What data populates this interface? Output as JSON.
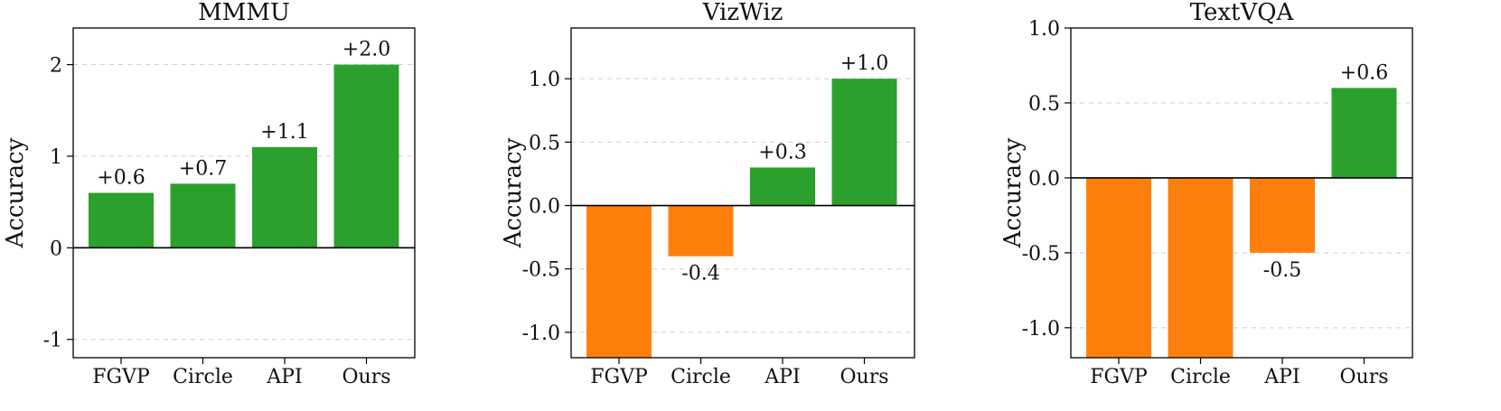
{
  "colors": {
    "positive": "#2ca02c",
    "negative": "#ff7f0e"
  },
  "chart_data": [
    {
      "type": "bar",
      "title": "MMMU",
      "ylabel": "Accuracy",
      "xlabel": "",
      "categories": [
        "FGVP",
        "Circle",
        "API",
        "Ours"
      ],
      "values": [
        0.6,
        0.7,
        1.1,
        2.0
      ],
      "labels": [
        "+0.6",
        "+0.7",
        "+1.1",
        "+2.0"
      ],
      "ylim": [
        -1.2,
        2.4
      ],
      "yticks": [
        -1,
        0,
        1,
        2
      ],
      "ytick_labels": [
        "-1",
        "0",
        "1",
        "2"
      ]
    },
    {
      "type": "bar",
      "title": "VizWiz",
      "ylabel": "Accuracy",
      "xlabel": "",
      "categories": [
        "FGVP",
        "Circle",
        "API",
        "Ours"
      ],
      "values": [
        -1.2,
        -0.4,
        0.3,
        1.0
      ],
      "labels": [
        "",
        "-0.4",
        "+0.3",
        "+1.0"
      ],
      "ylim": [
        -1.2,
        1.4
      ],
      "yticks": [
        -1.0,
        -0.5,
        0.0,
        0.5,
        1.0
      ],
      "ytick_labels": [
        "-1.0",
        "-0.5",
        "0.0",
        "0.5",
        "1.0"
      ]
    },
    {
      "type": "bar",
      "title": "TextVQA",
      "ylabel": "Accuracy",
      "xlabel": "",
      "categories": [
        "FGVP",
        "Circle",
        "API",
        "Ours"
      ],
      "values": [
        -1.2,
        -1.2,
        -0.5,
        0.6
      ],
      "labels": [
        "",
        "",
        "-0.5",
        "+0.6"
      ],
      "ylim": [
        -1.2,
        1.0
      ],
      "yticks": [
        -1.0,
        -0.5,
        0.0,
        0.5,
        1.0
      ],
      "ytick_labels": [
        "-1.0",
        "-0.5",
        "0.0",
        "0.5",
        "1.0"
      ]
    }
  ]
}
